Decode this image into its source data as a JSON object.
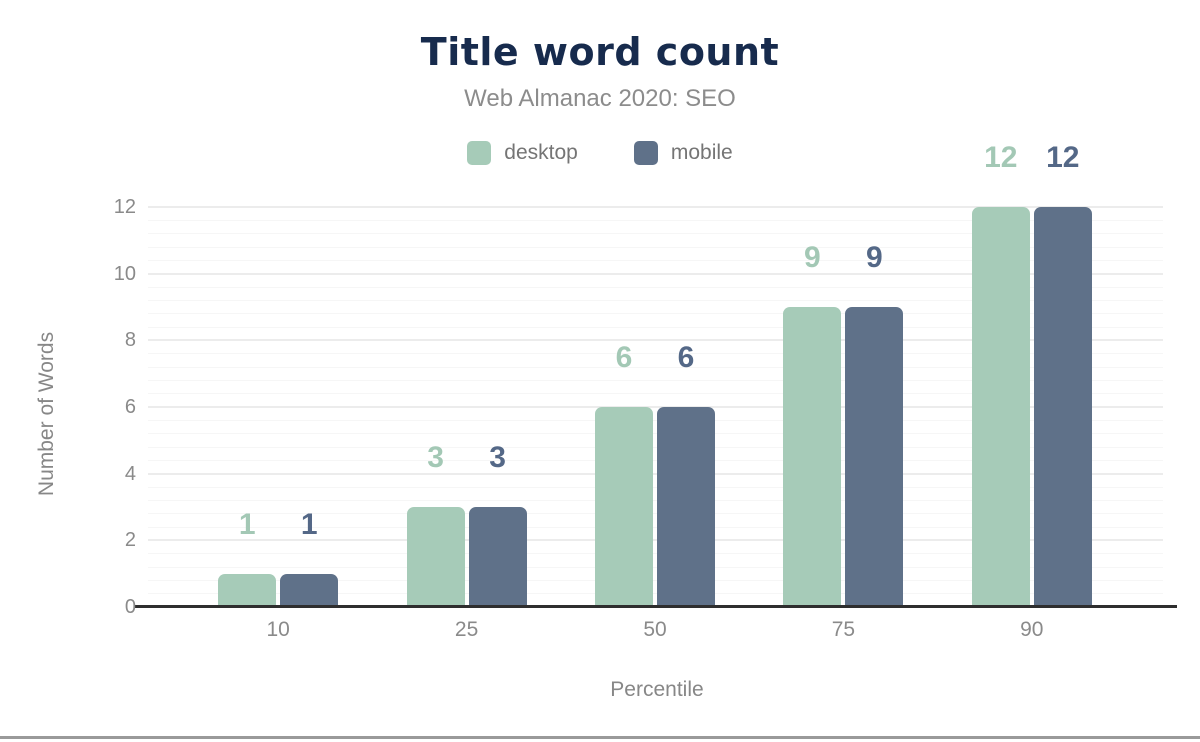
{
  "chart_data": {
    "type": "bar",
    "title": "Title word count",
    "subtitle": "Web Almanac 2020: SEO",
    "xlabel": "Percentile",
    "ylabel": "Number of Words",
    "categories": [
      "10",
      "25",
      "50",
      "75",
      "90"
    ],
    "series": [
      {
        "name": "desktop",
        "color": "#a6cbb8",
        "label_color": "#a3c8b5",
        "values": [
          1,
          3,
          6,
          9,
          12
        ]
      },
      {
        "name": "mobile",
        "color": "#5f7189",
        "label_color": "#546887",
        "values": [
          1,
          3,
          6,
          9,
          12
        ]
      }
    ],
    "ylim": [
      0,
      12
    ],
    "yticks": [
      0,
      2,
      4,
      6,
      8,
      10,
      12
    ],
    "grid": {
      "minor_step": 0.4,
      "major_step": 2,
      "major_color": "#ececec",
      "minor_color": "#f6f6f6"
    },
    "legend_position": "top",
    "value_labels": true,
    "colors": {
      "title": "#172b4d",
      "subtitle": "#8c8c8c",
      "legend_text": "#757575",
      "tick_text": "#8a8a8a",
      "axis_title_text": "#878787",
      "baseline": "#2e2e2e",
      "footer_rule": "#9a9a9a"
    }
  }
}
